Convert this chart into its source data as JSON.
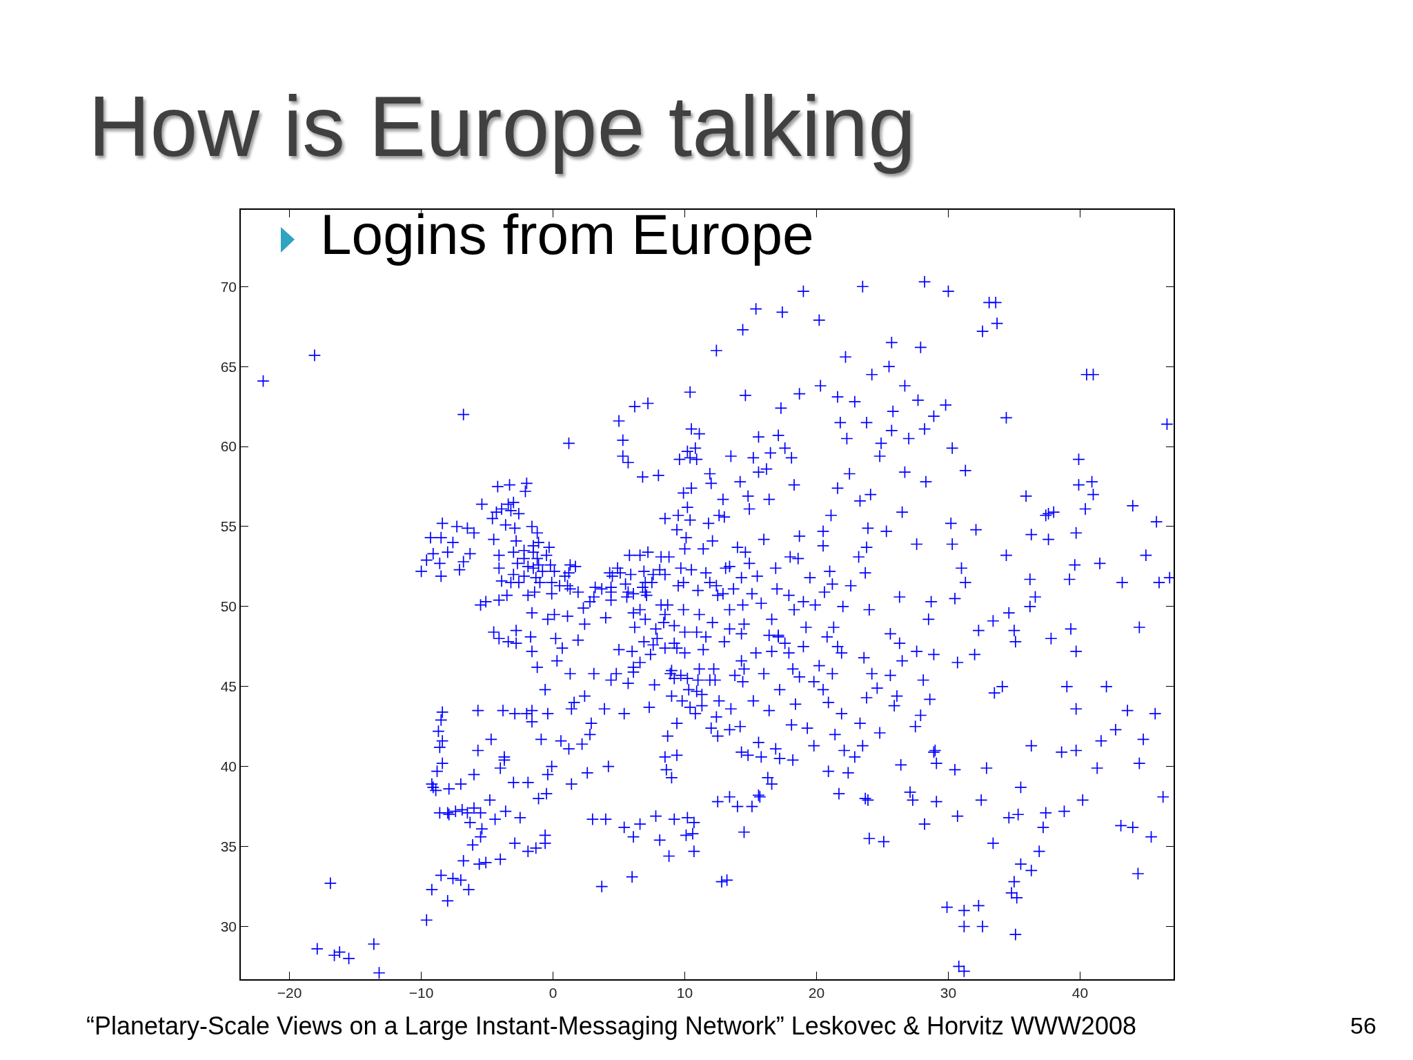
{
  "chart_data": {
    "type": "scatter",
    "title": "How is Europe talking",
    "subtitle": "Logins from Europe",
    "marker": "cross",
    "xlim": [
      -23.7,
      47.1
    ],
    "ylim": [
      26.7,
      74.8
    ],
    "xticks": [
      -20,
      -10,
      0,
      10,
      20,
      30,
      40
    ],
    "yticks": [
      30,
      35,
      40,
      45,
      50,
      55,
      60,
      65,
      70
    ],
    "annotations": [
      "“Planetary-Scale Views on a Large Instant-Messaging Network” Leskovec & Horvitz WWW2008",
      "56"
    ],
    "series": [
      {
        "color": "#0000ff",
        "x": [
          -22.0,
          -18.1,
          -6.8,
          1.2,
          -16.9,
          -17.9,
          -16.6,
          -16.2,
          -15.5,
          -13.6,
          -13.2,
          -6.3,
          -8.5,
          -9.1,
          -8.6,
          -7.1,
          -6.0,
          -7.3,
          -10.0,
          -9.3,
          -8.5,
          -6.5,
          -7.6,
          -8.0,
          -6.8,
          -8.4,
          -9.6,
          -2.1,
          -2.0,
          -3.3,
          -4.2,
          -3.0,
          -3.4,
          -3.9,
          -4.3,
          -3.2,
          -4.6,
          -3.6,
          -5.4,
          -2.6
        ],
        "values": [
          64.1,
          65.7,
          62.0,
          60.2,
          32.7,
          28.6,
          28.2,
          28.4,
          28.0,
          28.9,
          27.1,
          53.3,
          51.9,
          53.3,
          52.7,
          52.3,
          54.6,
          55.0,
          52.2,
          54.3,
          54.3,
          54.9,
          54.0,
          53.4,
          52.8,
          55.2,
          52.9,
          57.2,
          57.7,
          57.6,
          57.5,
          56.5,
          56.4,
          56.1,
          55.9,
          56.0,
          55.5,
          55.1,
          56.4,
          55.8
        ]
      },
      {
        "color": "#0000ff",
        "x": [
          -0.1,
          -1.9,
          -2.2,
          -3.0,
          -1.5,
          -1.5,
          -1.6,
          -2.6,
          -3.2,
          -3.9,
          -4.1,
          -3.5,
          -1.4,
          -0.1,
          1.3,
          1.2,
          0.1,
          -1.3,
          -1.2,
          -1.1,
          -0.3,
          -1.1,
          -1.2,
          -2.9,
          -2.8,
          -4.1,
          -4.1,
          1.1,
          -1.0,
          -1.5,
          -2.2,
          -2.2,
          -1.9,
          -5.1,
          1.3,
          0.9,
          -0.5,
          -0.2,
          -3.0,
          0.5,
          -0.8,
          -2.7,
          -5.5,
          1.7,
          -4.5
        ],
        "values": [
          51.5,
          52.5,
          53.5,
          53.4,
          53.8,
          53.4,
          55.0,
          51.5,
          51.5,
          51.6,
          50.4,
          50.7,
          50.9,
          50.8,
          52.6,
          52.1,
          52.2,
          51.8,
          53.0,
          52.6,
          53.7,
          54.0,
          54.6,
          54.9,
          54.1,
          52.4,
          53.2,
          51.3,
          51.5,
          52.4,
          53.0,
          51.9,
          50.7,
          50.3,
          51.1,
          51.9,
          53.2,
          52.6,
          52.0,
          51.3,
          52.2,
          52.7,
          50.1,
          52.5,
          54.2
        ]
      },
      {
        "color": "#0000ff",
        "x": [
          2.4,
          4.8,
          5.4,
          -0.6,
          1.4,
          -1.6,
          -1.7,
          -4.5,
          3.1,
          7.8,
          7.3,
          3.9,
          6.2,
          5.0,
          3.1,
          1.3,
          0.7,
          1.9,
          1.1,
          -0.4,
          0.1,
          4.0,
          5.7,
          0.3,
          2.9,
          -1.6,
          -1.6,
          -4.1,
          -2.8,
          -3.4,
          -2.8,
          -1.2,
          2.3,
          6.0,
          4.4,
          0.2,
          2.8,
          6.9,
          1.9,
          6.1,
          -0.4,
          2.4,
          1.6,
          9.4,
          8.7
        ],
        "values": [
          48.9,
          45.8,
          43.3,
          44.8,
          43.6,
          47.2,
          48.1,
          48.4,
          50.6,
          48.6,
          43.7,
          43.6,
          48.7,
          47.3,
          45.8,
          45.8,
          47.4,
          47.9,
          49.4,
          49.2,
          49.5,
          49.3,
          45.2,
          46.6,
          42.7,
          43.5,
          49.6,
          48.0,
          48.5,
          47.8,
          47.7,
          46.2,
          49.9,
          47.2,
          45.4,
          48.0,
          50.3,
          47.8,
          50.9,
          45.9,
          43.3,
          44.4,
          44.0,
          42.7,
          41.9
        ]
      },
      {
        "color": "#0000ff",
        "x": [
          -9.1,
          -8.6,
          -3.7,
          2.2,
          -0.4,
          -6.0,
          -4.4,
          -3.6,
          -1.1,
          -0.5,
          -2.9,
          -8.4,
          -5.7,
          -0.9,
          -4.7,
          -5.7,
          -6.3,
          -7.9,
          -7.0,
          2.6,
          1.4,
          -8.4,
          -8.4,
          -8.5,
          -8.7,
          -5.4,
          -2.0,
          -1.6,
          0.6,
          1.2,
          2.8,
          -3.8,
          -4.8,
          -6.9,
          -2.5,
          -3.7,
          -4.0,
          -6.0,
          -8.9,
          -8.8,
          -9.2,
          -7.9,
          4.2,
          -3.0,
          -1.9,
          -0.1,
          -8.6,
          -8.0,
          -7.4,
          -6.5,
          -5.5
        ],
        "values": [
          38.7,
          41.2,
          40.4,
          41.4,
          39.5,
          37.4,
          36.7,
          37.2,
          38.0,
          38.3,
          43.3,
          43.4,
          43.5,
          41.7,
          41.7,
          41.0,
          36.5,
          37.0,
          38.9,
          39.6,
          38.9,
          40.2,
          41.6,
          42.9,
          42.2,
          36.1,
          43.3,
          42.8,
          41.6,
          41.1,
          42.0,
          43.5,
          37.9,
          37.3,
          36.8,
          40.6,
          39.9,
          39.5,
          38.5,
          39.7,
          38.9,
          38.6,
          40.0,
          39.0,
          39.0,
          40.0,
          37.1,
          37.1,
          37.2,
          37.1,
          37.1
        ]
      },
      {
        "color": "#0000ff",
        "x": [
          -9.2,
          -8.5,
          -8.0,
          -9.6,
          -7.6,
          -7.0,
          -6.4,
          -6.8,
          -5.6,
          -5.1,
          -4.0,
          -6.1,
          -5.5,
          -2.9,
          -1.9,
          -1.3,
          -0.6,
          -0.6,
          3.0,
          4.0,
          5.4,
          6.6,
          6.1,
          7.8,
          3.7,
          6.0,
          9.2,
          10.2,
          10.7,
          8.1,
          8.8,
          10.7,
          10.1,
          10.6,
          13.2,
          12.8,
          9.0,
          8.5,
          9.4,
          8.6
        ],
        "values": [
          32.3,
          33.2,
          31.6,
          30.4,
          33.0,
          32.9,
          32.3,
          34.1,
          33.9,
          34.0,
          34.2,
          35.1,
          35.6,
          35.2,
          34.7,
          34.9,
          35.2,
          35.7,
          36.7,
          36.7,
          36.2,
          36.4,
          35.6,
          36.9,
          32.5,
          33.1,
          36.7,
          36.8,
          36.5,
          35.4,
          34.4,
          34.7,
          35.7,
          35.8,
          32.9,
          32.8,
          39.3,
          40.6,
          40.7,
          39.8
        ]
      },
      {
        "color": "#0000ff",
        "x": [
          12.5,
          9.2,
          7.7,
          9.0,
          12.3,
          11.3,
          11.3,
          10.4,
          14.3,
          16.9,
          18.2,
          14.2,
          13.5,
          15.7,
          15.1,
          13.4,
          15.6,
          16.3,
          17.2,
          12.4,
          13.8,
          11.0,
          10.2,
          9.7,
          11.9,
          10.3,
          10.9,
          12.6,
          14.8,
          15.6,
          14.5,
          12.5,
          14.0,
          16.6,
          13.4,
          8.9,
          11.1,
          12.2,
          15.8,
          12.0,
          9.8,
          10.8
        ],
        "values": [
          41.9,
          45.5,
          45.1,
          44.4,
          45.4,
          44.5,
          43.8,
          43.7,
          40.9,
          41.1,
          40.4,
          42.5,
          43.6,
          38.1,
          37.5,
          38.1,
          38.2,
          39.3,
          40.5,
          43.1,
          45.7,
          45.4,
          45.5,
          45.7,
          45.4,
          44.8,
          44.7,
          44.1,
          40.7,
          41.5,
          35.9,
          37.8,
          37.5,
          38.9,
          42.3,
          45.8,
          46.1,
          46.1,
          40.6,
          42.4,
          44.1,
          43.3
        ]
      },
      {
        "color": "#0000ff",
        "x": [
          8.5,
          6.1,
          7.4,
          7.6,
          6.6,
          9.0,
          11.4,
          13.0,
          16.4,
          15.4,
          14.3,
          14.3,
          14.5,
          16.0,
          16.4,
          15.2,
          14.4,
          18.1,
          9.4,
          10.0,
          17.1,
          18.7,
          14.4,
          16.6,
          18.3,
          13.4,
          17.1,
          21.3,
          19.0,
          21.6,
          20.2,
          18.2,
          17.6,
          15.8,
          14.5,
          19.2,
          20.8,
          17.9,
          16.6,
          15.1
        ],
        "values": [
          47.4,
          46.2,
          47.0,
          47.6,
          46.5,
          46.0,
          47.3,
          47.8,
          48.2,
          47.1,
          48.3,
          46.6,
          46.1,
          45.8,
          43.5,
          44.1,
          45.3,
          42.6,
          47.4,
          47.1,
          48.2,
          45.6,
          50.1,
          49.2,
          49.8,
          49.8,
          48.1,
          48.7,
          47.5,
          47.5,
          46.3,
          46.1,
          47.7,
          50.2,
          48.9,
          48.7,
          48.1,
          47.1,
          47.2,
          50.8
        ]
      },
      {
        "color": "#0000ff",
        "x": [
          13.4,
          10.0,
          11.6,
          8.7,
          7.0,
          6.8,
          7.0,
          7.5,
          9.2,
          9.7,
          8.8,
          12.4,
          13.7,
          11.1,
          10.1,
          12.1,
          7.9,
          8.4,
          8.5,
          7.1,
          7.6,
          9.5,
          11.0,
          11.6,
          10.9,
          12.1,
          9.9,
          7.0,
          6.1,
          9.4,
          9.9,
          8.5,
          8.1,
          12.9,
          13.4,
          10.0,
          9.2,
          14.3,
          11.9,
          8.2,
          6.6,
          10.5,
          12.5,
          13.1,
          7.2,
          8.2,
          14.0,
          11.4,
          4.9,
          4.5,
          4.4,
          4.4,
          3.7,
          5.6,
          6.1,
          5.1,
          6.6,
          5.5,
          4.3,
          5.8,
          6.9,
          5.7,
          3.2,
          4.4,
          5.9
        ],
        "values": [
          52.5,
          53.6,
          48.1,
          50.1,
          50.9,
          51.2,
          51.5,
          51.5,
          48.8,
          52.4,
          53.1,
          51.3,
          51.1,
          49.5,
          54.3,
          54.1,
          48.0,
          49.0,
          49.5,
          50.7,
          52.0,
          51.3,
          51.0,
          52.1,
          48.4,
          49.0,
          49.8,
          49.2,
          50.8,
          54.8,
          51.5,
          52.0,
          52.3,
          50.8,
          48.6,
          48.4,
          47.7,
          51.8,
          51.5,
          50.1,
          49.8,
          52.3,
          50.7,
          52.4,
          53.4,
          53.1,
          53.7,
          53.6,
          52.4,
          51.9,
          50.9,
          51.2,
          51.1,
          50.6,
          49.6,
          52.1,
          53.2,
          51.4,
          52.1,
          53.2,
          52.2,
          50.9,
          51.2,
          50.4,
          52.0
        ]
      },
      {
        "color": "#0000ff",
        "x": [
          12.6,
          10.2,
          10.4,
          9.9,
          8.5,
          10.5,
          13.0,
          9.5,
          11.8,
          14.9,
          10.8,
          5.3,
          5.7,
          8.0,
          10.4,
          19.0,
          14.4,
          6.2,
          10.5,
          11.1,
          10.2,
          10.4,
          10.9,
          9.6,
          5.3,
          7.2,
          17.4,
          23.5,
          30.0,
          28.2,
          5.0,
          6.8,
          12.4,
          15.4,
          18.1,
          12.0,
          17.6,
          16.5,
          15.2,
          15.6,
          16.2,
          14.2,
          14.8,
          16.4,
          13.5,
          17.1,
          17.3,
          20.3,
          22.2,
          14.6,
          20.2,
          18.3,
          12.9,
          11.9,
          15.6,
          18.7,
          24.9,
          23.8,
          22.3,
          25.5,
          25.8,
          27.7,
          25.7,
          21.6,
          21.8,
          29.8,
          25.7,
          28.2,
          27.0,
          26.7,
          28.9,
          24.2,
          22.9,
          27.9,
          24.8,
          24.1,
          25.3,
          23.9,
          26.7,
          21.1,
          23.3,
          21.6,
          26.5,
          22.5
        ],
        "values": [
          55.7,
          56.2,
          55.4,
          57.1,
          55.5,
          57.4,
          55.6,
          55.7,
          55.2,
          56.1,
          59.9,
          60.4,
          59.0,
          58.2,
          63.4,
          69.7,
          67.3,
          62.5,
          61.1,
          60.8,
          59.7,
          59.3,
          59.2,
          59.2,
          59.4,
          62.7,
          68.4,
          70.0,
          69.7,
          70.3,
          61.6,
          58.1,
          66.0,
          68.6,
          59.3,
          57.7,
          59.9,
          59.6,
          59.3,
          58.4,
          58.6,
          57.8,
          56.9,
          56.7,
          59.4,
          60.7,
          62.4,
          63.8,
          65.6,
          63.2,
          67.9,
          57.6,
          56.7,
          58.3,
          60.6,
          63.3,
          60.2,
          61.5,
          60.5,
          65.0,
          62.2,
          62.9,
          61.0,
          63.1,
          61.5,
          62.6,
          66.5,
          61.1,
          60.5,
          63.8,
          61.9,
          64.5,
          62.8,
          66.2,
          59.4,
          57.0,
          54.7,
          54.9,
          58.4,
          55.7,
          56.6,
          57.4,
          55.9,
          58.3
        ]
      },
      {
        "color": "#0000ff",
        "x": [
          21.0,
          19.9,
          18.7,
          16.9,
          17.0,
          19.5,
          14.6,
          19.0,
          22.6,
          23.2,
          22.0,
          18.0,
          18.6,
          20.5,
          15.5,
          20.6,
          17.9,
          16.0,
          21.2,
          14.9,
          30.5,
          36.2,
          30.7,
          35.0,
          37.8,
          24.0,
          35.1,
          33.5,
          34.1,
          28.5,
          28.7,
          31.3,
          34.6,
          32.0,
          27.6,
          31.0,
          23.7,
          23.8,
          30.2,
          30.3,
          26.3,
          32.3,
          25.6,
          33.4,
          39.3
        ],
        "values": [
          52.2,
          50.1,
          54.4,
          52.4,
          51.1,
          51.8,
          53.4,
          50.3,
          51.3,
          53.1,
          50.0,
          53.1,
          53.0,
          53.8,
          51.9,
          50.9,
          50.7,
          54.2,
          51.4,
          52.7,
          50.5,
          50.0,
          46.5,
          48.5,
          48.0,
          49.8,
          47.8,
          44.6,
          45.0,
          49.2,
          50.3,
          51.5,
          49.6,
          47.0,
          53.9,
          52.4,
          52.1,
          53.7,
          55.2,
          53.9,
          50.6,
          48.5,
          48.3,
          49.1,
          48.6
        ]
      },
      {
        "color": "#0000ff",
        "x": [
          26.1,
          23.6,
          21.2,
          27.6,
          28.6,
          25.6,
          23.8,
          28.1,
          24.2,
          21.9,
          26.3,
          28.9,
          20.5,
          19.8,
          21.9,
          18.4,
          23.3,
          24.8,
          27.9,
          27.5,
          21.4,
          19.8,
          19.3,
          22.9,
          23.7,
          21.7,
          20.9,
          22.4,
          25.1,
          24.0,
          23.9,
          25.9,
          24.6,
          17.2,
          20.9,
          26.5,
          22.1,
          23.5
        ],
        "values": [
          44.4,
          46.8,
          45.8,
          47.2,
          44.2,
          45.7,
          44.3,
          45.4,
          45.8,
          47.1,
          47.7,
          47.0,
          44.8,
          45.3,
          43.3,
          43.9,
          42.7,
          42.1,
          43.2,
          42.5,
          42.0,
          41.3,
          42.4,
          40.6,
          38.0,
          38.3,
          39.7,
          39.6,
          35.3,
          35.5,
          37.9,
          43.8,
          44.9,
          44.8,
          44.0,
          46.6,
          41.0,
          41.3
        ]
      },
      {
        "color": "#0000ff",
        "x": [
          29.0,
          28.9,
          32.9,
          29.1,
          27.1,
          30.7,
          35.3,
          32.5,
          35.5,
          36.3,
          39.7,
          37.4,
          40.2,
          41.3,
          34.6,
          30.5,
          29.1,
          26.4,
          33.4,
          34.8,
          35.2,
          35.0,
          35.5,
          36.3,
          35.1,
          31.2,
          29.9,
          32.3,
          32.6,
          31.2,
          30.8,
          37.2,
          28.2,
          27.3,
          38.8,
          43.1,
          44.4,
          44.0,
          46.3,
          45.4,
          36.9,
          38.6,
          31.2
        ],
        "values": [
          41.0,
          40.9,
          39.9,
          40.2,
          38.4,
          36.9,
          37.0,
          37.9,
          38.7,
          41.3,
          41.0,
          37.1,
          37.9,
          39.9,
          36.8,
          39.8,
          37.8,
          40.1,
          35.2,
          32.1,
          31.8,
          32.8,
          33.9,
          33.5,
          29.5,
          30.0,
          31.2,
          31.3,
          30.0,
          27.2,
          27.5,
          36.2,
          36.4,
          37.9,
          37.2,
          36.3,
          33.3,
          36.2,
          38.1,
          35.6,
          34.7,
          40.9,
          31.0
        ]
      },
      {
        "color": "#0000ff",
        "x": [
          37.6,
          37.4,
          30.3,
          31.3,
          28.3,
          35.9,
          39.9,
          39.9,
          44.0,
          46.0,
          44.5,
          39.7,
          39.0,
          39.2,
          36.2,
          36.6,
          37.6,
          39.7,
          36.3,
          32.1,
          34.4,
          39.6,
          41.5,
          45.0,
          41.0,
          40.4,
          40.9,
          40.5,
          41.0,
          34.4,
          33.1,
          33.6,
          32.6,
          33.7,
          20.5,
          42.0,
          39.7,
          45.7,
          43.6,
          44.8,
          44.5,
          41.6,
          42.7,
          38.0,
          46.8,
          43.2,
          45.8,
          46.6
        ],
        "values": [
          55.8,
          55.7,
          59.9,
          58.5,
          57.8,
          56.9,
          57.6,
          59.2,
          56.3,
          51.5,
          48.7,
          47.2,
          45.0,
          51.7,
          51.7,
          50.6,
          54.2,
          54.6,
          54.5,
          54.8,
          53.2,
          52.6,
          52.7,
          53.2,
          57.0,
          56.1,
          57.8,
          64.5,
          64.5,
          61.8,
          69.0,
          69.0,
          67.2,
          67.7,
          54.7,
          45.0,
          43.6,
          43.3,
          43.5,
          41.7,
          40.2,
          41.6,
          42.3,
          55.9,
          51.8,
          51.5,
          55.3,
          61.4
        ]
      }
    ]
  }
}
